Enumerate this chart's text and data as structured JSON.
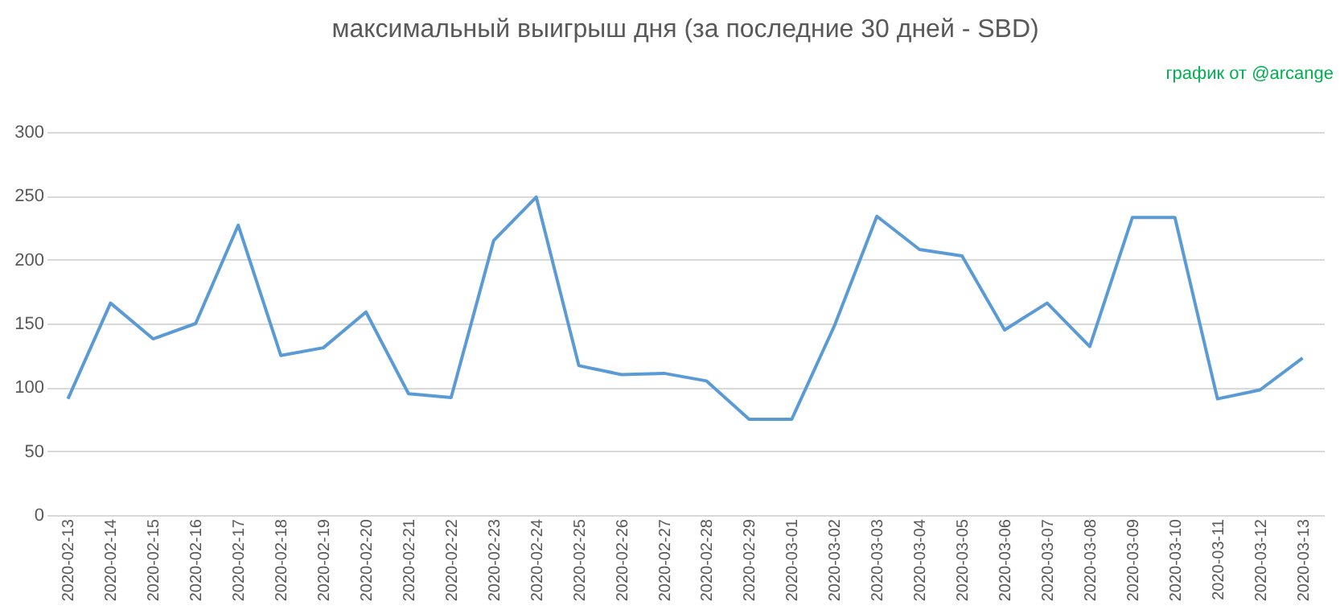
{
  "chart_data": {
    "type": "line",
    "title": "максимальный выигрыш дня (за последние 30 дней - SBD)",
    "categories": [
      "2020-02-13",
      "2020-02-14",
      "2020-02-15",
      "2020-02-16",
      "2020-02-17",
      "2020-02-18",
      "2020-02-19",
      "2020-02-20",
      "2020-02-21",
      "2020-02-22",
      "2020-02-23",
      "2020-02-24",
      "2020-02-25",
      "2020-02-26",
      "2020-02-27",
      "2020-02-28",
      "2020-02-29",
      "2020-03-01",
      "2020-03-02",
      "2020-03-03",
      "2020-03-04",
      "2020-03-05",
      "2020-03-06",
      "2020-03-07",
      "2020-03-08",
      "2020-03-09",
      "2020-03-10",
      "2020-03-11",
      "2020-03-12",
      "2020-03-13"
    ],
    "series": [
      {
        "color": "#5b9bd5",
        "values": [
          91,
          166,
          138,
          150,
          227,
          125,
          131,
          159,
          95,
          92,
          215,
          249,
          117,
          110,
          111,
          105,
          75,
          75,
          148,
          234,
          208,
          203,
          145,
          166,
          132,
          233,
          233,
          91,
          98,
          123
        ]
      }
    ],
    "ylim": [
      0,
      300
    ],
    "yticks": [
      0,
      50,
      100,
      150,
      200,
      250,
      300
    ],
    "grid": "y",
    "marker": "none",
    "line_style": "solid",
    "annotations": [
      "график от @arcange"
    ]
  }
}
